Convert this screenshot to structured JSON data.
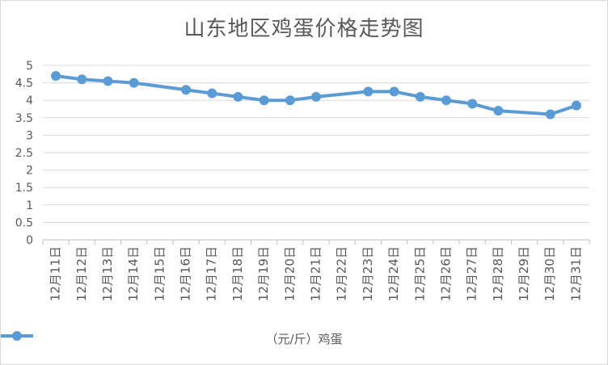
{
  "chart_data": {
    "type": "line",
    "title": "山东地区鸡蛋价格走势图",
    "categories": [
      "12月11日",
      "12月12日",
      "12月13日",
      "12月14日",
      "12月15日",
      "12月16日",
      "12月17日",
      "12月18日",
      "12月19日",
      "12月20日",
      "12月21日",
      "12月22日",
      "12月23日",
      "12月24日",
      "12月25日",
      "12月26日",
      "12月27日",
      "12月28日",
      "12月29日",
      "12月30日",
      "12月31日"
    ],
    "series": [
      {
        "name": "（元/斤）鸡蛋",
        "color": "#5b9bd5",
        "values": [
          4.7,
          4.6,
          4.55,
          4.5,
          null,
          4.3,
          4.2,
          4.1,
          4.0,
          4.0,
          4.1,
          null,
          4.25,
          4.25,
          4.1,
          4.0,
          3.9,
          3.7,
          null,
          3.6,
          3.85
        ]
      }
    ],
    "ylim": [
      0,
      5
    ],
    "yticks": [
      "0",
      "0.5",
      "1",
      "1.5",
      "2",
      "2.5",
      "3",
      "3.5",
      "4",
      "4.5",
      "5"
    ],
    "grid": true,
    "legend_position": "bottom"
  }
}
